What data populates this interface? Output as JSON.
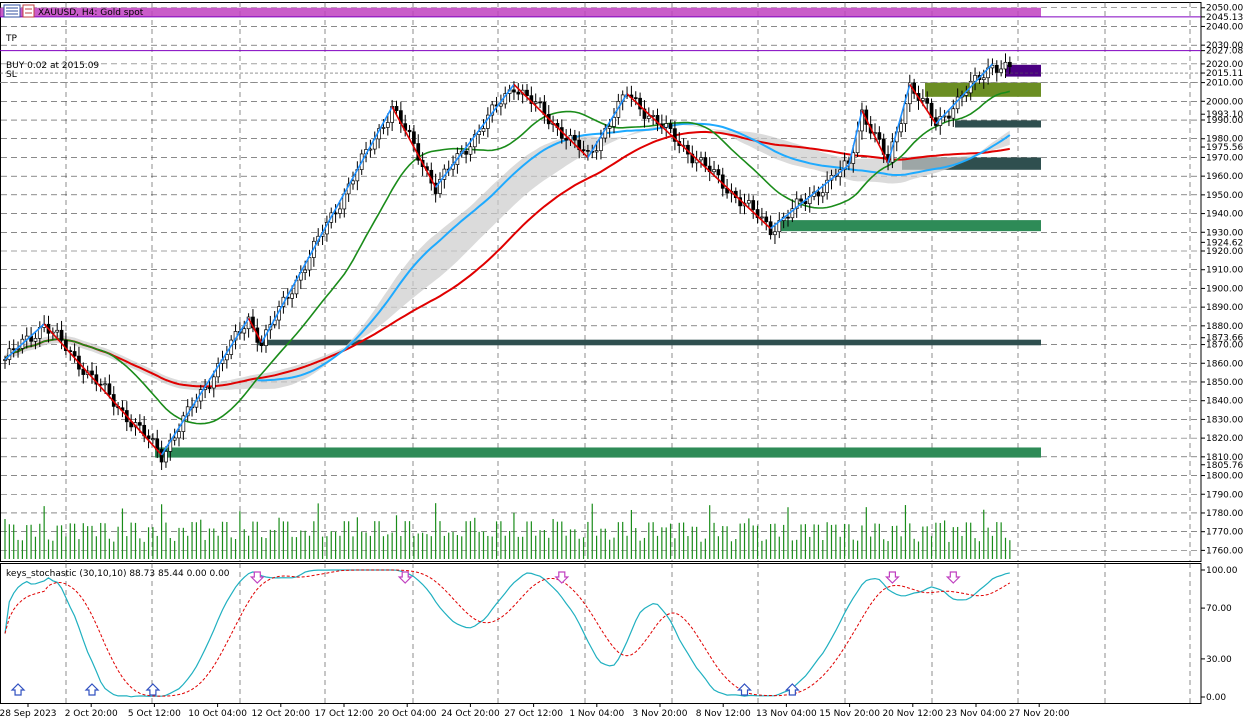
{
  "header": {
    "symbol_title": "XAUUSD, H4:  Gold spot",
    "tp_label": "TP",
    "buy_label": "BUY 0.02 at 2015.09",
    "sl_label": "SL"
  },
  "indicator": {
    "title": "keys_stochastic (30,10,10) 88.73 85.44 0.00 0.00"
  },
  "colors": {
    "up_leg": "#1e90ff",
    "down_leg": "#e00000",
    "ma_slow": "#e00000",
    "ma_mid": "#1a8c1a",
    "ma_fast": "#1eaaff",
    "band": "#cccccc",
    "resistance": "#c040c0",
    "tp_line": "#8000c0",
    "demand_zone": "#2e8b57",
    "dark_zone": "#2f4f4f",
    "olive_zone": "#6b8e23",
    "purple_zone": "#4b0082",
    "stoch_main": "#20b0c0",
    "stoch_signal": "#e00000",
    "arrow_up": "#3050c0",
    "arrow_down": "#c040c0"
  },
  "chart_data": {
    "type": "candlestick",
    "price_axis": {
      "ticks": [
        "2050.00",
        "2045.13",
        "2040.00",
        "2030.00",
        "2027.08",
        "2020.00",
        "2015.11",
        "2010.00",
        "2000.00",
        "1993.10",
        "1990.00",
        "1980.00",
        "1975.56",
        "1970.00",
        "1960.00",
        "1950.00",
        "1940.00",
        "1930.00",
        "1924.62",
        "1920.00",
        "1910.00",
        "1900.00",
        "1890.00",
        "1880.00",
        "1873.66",
        "1870.00",
        "1860.00",
        "1850.00",
        "1840.00",
        "1830.00",
        "1820.00",
        "1810.00",
        "1805.76",
        "1800.00",
        "1790.00",
        "1780.00",
        "1770.00",
        "1760.00"
      ],
      "range": [
        1757,
        2052
      ]
    },
    "time_axis": {
      "labels": [
        "28 Sep 2023",
        "2 Oct 20:00",
        "5 Oct 12:00",
        "10 Oct 04:00",
        "12 Oct 20:00",
        "17 Oct 12:00",
        "20 Oct 04:00",
        "24 Oct 20:00",
        "27 Oct 12:00",
        "1 Nov 04:00",
        "3 Nov 20:00",
        "8 Nov 12:00",
        "13 Nov 04:00",
        "15 Nov 20:00",
        "20 Nov 12:00",
        "23 Nov 04:00",
        "27 Nov 20:00"
      ]
    },
    "zigzag_pivots": [
      {
        "bar": 0,
        "price": 1862
      },
      {
        "bar": 9,
        "price": 1881
      },
      {
        "bar": 36,
        "price": 1811
      },
      {
        "bar": 56,
        "price": 1884
      },
      {
        "bar": 59,
        "price": 1871
      },
      {
        "bar": 89,
        "price": 1997
      },
      {
        "bar": 99,
        "price": 1954
      },
      {
        "bar": 117,
        "price": 2009
      },
      {
        "bar": 134,
        "price": 1970
      },
      {
        "bar": 143,
        "price": 2004
      },
      {
        "bar": 176,
        "price": 1932
      },
      {
        "bar": 194,
        "price": 1966
      },
      {
        "bar": 197,
        "price": 1995
      },
      {
        "bar": 203,
        "price": 1967
      },
      {
        "bar": 208,
        "price": 2009
      },
      {
        "bar": 214,
        "price": 1988
      },
      {
        "bar": 227,
        "price": 2020
      }
    ],
    "zones": [
      {
        "kind": "resistance",
        "from": 2045.1,
        "to": 2050.0
      },
      {
        "kind": "purple",
        "from": 2013.2,
        "to": 2019.5
      },
      {
        "kind": "olive",
        "from": 2002.4,
        "to": 2010.0
      },
      {
        "kind": "dark",
        "from": 1986.0,
        "to": 1989.8
      },
      {
        "kind": "dark",
        "from": 1963.4,
        "to": 1970.0
      },
      {
        "kind": "demand",
        "from": 1930.6,
        "to": 1936.5
      },
      {
        "kind": "dark",
        "from": 1869.6,
        "to": 1872.6
      },
      {
        "kind": "demand",
        "from": 1809.6,
        "to": 1815.0
      }
    ],
    "levels": {
      "tp": 2027.08,
      "entry": 2015.09,
      "sl": 2010.0
    },
    "stochastic": {
      "params": [
        30,
        10,
        10
      ],
      "main": 88.73,
      "signal": 85.44,
      "levels": [
        0,
        30,
        70,
        100
      ],
      "tick_labels": [
        "100.00",
        "70.00",
        "30.00",
        "0.00"
      ]
    }
  }
}
